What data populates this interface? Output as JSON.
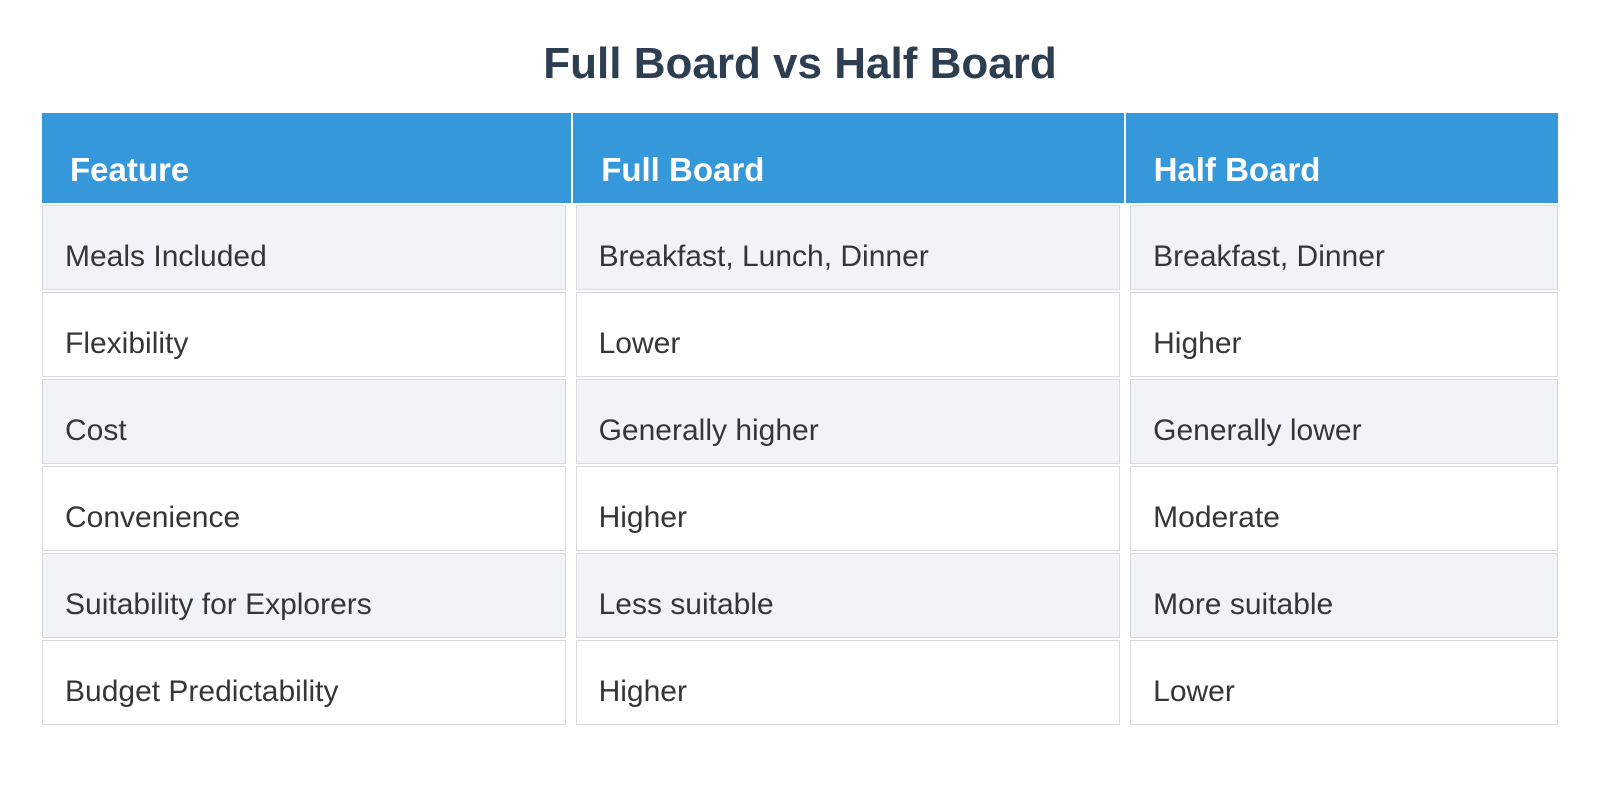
{
  "chart_data": {
    "type": "table",
    "title": "Full Board vs Half Board",
    "columns": [
      "Feature",
      "Full Board",
      "Half Board"
    ],
    "rows": [
      [
        "Meals Included",
        "Breakfast, Lunch, Dinner",
        "Breakfast, Dinner"
      ],
      [
        "Flexibility",
        "Lower",
        "Higher"
      ],
      [
        "Cost",
        "Generally higher",
        "Generally lower"
      ],
      [
        "Convenience",
        "Higher",
        "Moderate"
      ],
      [
        "Suitability for Explorers",
        "Less suitable",
        "More suitable"
      ],
      [
        "Budget Predictability",
        "Higher",
        "Lower"
      ]
    ],
    "layout": {
      "striped": true,
      "stripe_rows": "odd",
      "header_position": "top",
      "grid": "bordered-cells-with-gaps"
    },
    "colors": {
      "header_bg": "#3498db",
      "header_text": "#ffffff",
      "stripe_row_bg": "#f0f3f8",
      "plain_row_bg": "#ffffff",
      "cell_border": "#d9dadc",
      "body_text": "#363636",
      "title_text": "#2c3e50",
      "page_bg": "#ffffff"
    }
  }
}
